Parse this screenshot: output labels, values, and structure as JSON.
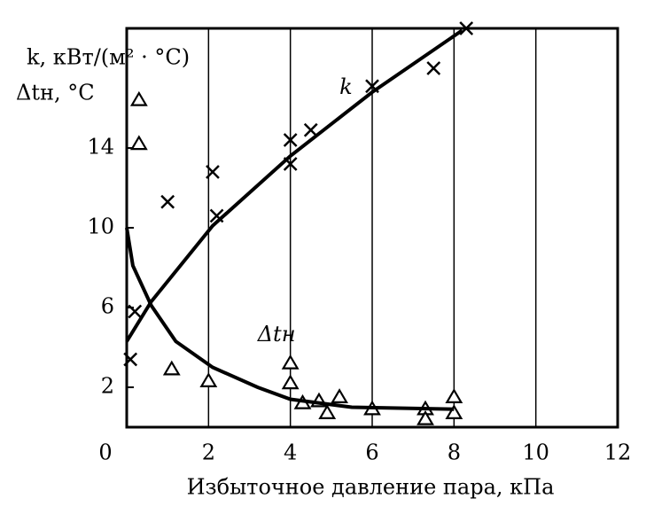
{
  "chart_data": {
    "type": "scatter",
    "y_label": "k, кВт/(м² · °С)",
    "y2_label": "Δtн, °С",
    "x_label": "Избыточное давление пара, кПа",
    "annotations": [
      {
        "text": "k",
        "x": 5.2,
        "y": 17.0
      },
      {
        "text": "Δtн",
        "x": 3.2,
        "y": 4.6
      }
    ],
    "xlim": [
      0,
      12
    ],
    "xticks": [
      0,
      2,
      4,
      6,
      8,
      10,
      12
    ],
    "ylim": [
      0,
      20
    ],
    "yticks": [
      2,
      6,
      10,
      14
    ],
    "grid": "x",
    "series": [
      {
        "marker": "cross",
        "color": "#000000",
        "x": [
          0.09,
          0.2,
          1.0,
          2.1,
          2.2,
          4.0,
          4.0,
          4.5,
          6.0,
          7.5,
          8.3
        ],
        "values": [
          3.4,
          5.8,
          11.3,
          12.8,
          10.6,
          13.2,
          14.4,
          14.9,
          17.1,
          18.0,
          20.0
        ]
      },
      {
        "marker": "triangle",
        "color": "#000000",
        "x": [
          0.3,
          0.3,
          1.1,
          2.0,
          4.0,
          4.0,
          4.3,
          4.7,
          4.9,
          5.2,
          6.0,
          7.3,
          7.3,
          8.0,
          8.0
        ],
        "values": [
          16.4,
          14.2,
          2.9,
          2.3,
          3.2,
          2.2,
          1.2,
          1.3,
          0.7,
          1.5,
          0.9,
          0.9,
          0.4,
          1.5,
          0.7
        ]
      },
      {
        "marker": "line",
        "color": "#000000",
        "x": [
          0,
          0.6,
          2.1,
          4.0,
          6.0,
          8.2
        ],
        "values": [
          4.3,
          6.3,
          10.1,
          13.6,
          16.8,
          19.9
        ]
      },
      {
        "marker": "line",
        "color": "#000000",
        "x": [
          0,
          0.15,
          0.6,
          1.2,
          2.1,
          3.2,
          4.0,
          5.5,
          8.0
        ],
        "values": [
          10.0,
          8.1,
          6.1,
          4.3,
          3.0,
          2.0,
          1.4,
          1.0,
          0.9
        ]
      }
    ]
  }
}
